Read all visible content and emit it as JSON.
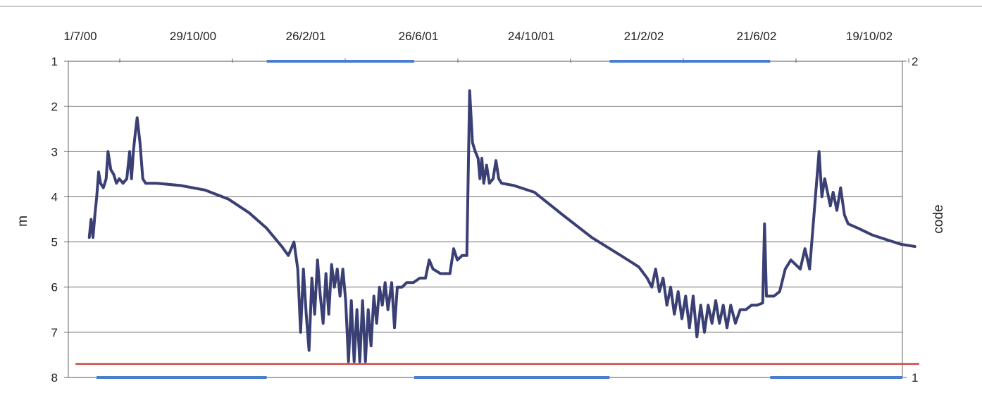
{
  "chart_data": {
    "type": "line",
    "title": "",
    "xlabel": "",
    "ylabel": "m",
    "y2label": "code",
    "y_inverted": true,
    "ylim": [
      1,
      8
    ],
    "y2lim": [
      1,
      2
    ],
    "xlim": [
      "2000-07-01",
      "2002-12-15"
    ],
    "x_tick_labels": [
      "1/7/00",
      "29/10/00",
      "26/2/01",
      "26/6/01",
      "24/10/01",
      "21/2/02",
      "21/6/02",
      "19/10/02"
    ],
    "x_tick_dates": [
      "2000-07-01",
      "2000-10-29",
      "2001-02-26",
      "2001-06-26",
      "2001-10-24",
      "2002-02-21",
      "2002-06-21",
      "2002-10-19"
    ],
    "y_ticks": [
      1,
      2,
      3,
      4,
      5,
      6,
      7,
      8
    ],
    "y2_ticks": [
      1,
      2
    ],
    "grid": "horizontal",
    "series": [
      {
        "color": "#3a3f74",
        "axis": "y",
        "points": [
          [
            "2000-07-15",
            4.9
          ],
          [
            "2000-07-17",
            4.5
          ],
          [
            "2000-07-19",
            4.9
          ],
          [
            "2000-07-21",
            4.4
          ],
          [
            "2000-07-23",
            4.0
          ],
          [
            "2000-07-25",
            3.45
          ],
          [
            "2000-07-27",
            3.7
          ],
          [
            "2000-07-30",
            3.8
          ],
          [
            "2000-08-02",
            3.6
          ],
          [
            "2000-08-04",
            3.0
          ],
          [
            "2000-08-07",
            3.4
          ],
          [
            "2000-08-10",
            3.5
          ],
          [
            "2000-08-13",
            3.7
          ],
          [
            "2000-08-16",
            3.6
          ],
          [
            "2000-08-20",
            3.7
          ],
          [
            "2000-08-24",
            3.6
          ],
          [
            "2000-08-27",
            3.0
          ],
          [
            "2000-08-29",
            3.6
          ],
          [
            "2000-08-31",
            3.0
          ],
          [
            "2000-09-02",
            2.6
          ],
          [
            "2000-09-04",
            2.25
          ],
          [
            "2000-09-07",
            2.8
          ],
          [
            "2000-09-10",
            3.6
          ],
          [
            "2000-09-13",
            3.7
          ],
          [
            "2000-09-25",
            3.7
          ],
          [
            "2000-10-20",
            3.75
          ],
          [
            "2000-11-15",
            3.85
          ],
          [
            "2000-12-10",
            4.05
          ],
          [
            "2001-01-01",
            4.35
          ],
          [
            "2001-01-20",
            4.7
          ],
          [
            "2001-02-05",
            5.1
          ],
          [
            "2001-02-12",
            5.3
          ],
          [
            "2001-02-18",
            5.0
          ],
          [
            "2001-02-22",
            5.6
          ],
          [
            "2001-02-25",
            7.0
          ],
          [
            "2001-02-28",
            5.6
          ],
          [
            "2001-03-03",
            6.6
          ],
          [
            "2001-03-06",
            7.4
          ],
          [
            "2001-03-09",
            5.8
          ],
          [
            "2001-03-12",
            6.6
          ],
          [
            "2001-03-15",
            5.4
          ],
          [
            "2001-03-18",
            6.2
          ],
          [
            "2001-03-21",
            6.8
          ],
          [
            "2001-03-24",
            5.7
          ],
          [
            "2001-03-27",
            6.6
          ],
          [
            "2001-03-30",
            5.5
          ],
          [
            "2001-04-02",
            6.0
          ],
          [
            "2001-04-05",
            5.6
          ],
          [
            "2001-04-08",
            6.2
          ],
          [
            "2001-04-11",
            5.6
          ],
          [
            "2001-04-14",
            6.3
          ],
          [
            "2001-04-17",
            7.65
          ],
          [
            "2001-04-20",
            6.3
          ],
          [
            "2001-04-23",
            7.65
          ],
          [
            "2001-04-26",
            6.5
          ],
          [
            "2001-04-29",
            7.65
          ],
          [
            "2001-05-02",
            6.3
          ],
          [
            "2001-05-05",
            7.65
          ],
          [
            "2001-05-08",
            6.5
          ],
          [
            "2001-05-11",
            7.3
          ],
          [
            "2001-05-14",
            6.2
          ],
          [
            "2001-05-17",
            6.8
          ],
          [
            "2001-05-20",
            6.0
          ],
          [
            "2001-05-23",
            6.4
          ],
          [
            "2001-05-26",
            5.9
          ],
          [
            "2001-05-29",
            6.5
          ],
          [
            "2001-06-02",
            5.9
          ],
          [
            "2001-06-05",
            6.9
          ],
          [
            "2001-06-08",
            6.0
          ],
          [
            "2001-06-13",
            6.0
          ],
          [
            "2001-06-18",
            5.9
          ],
          [
            "2001-06-25",
            5.9
          ],
          [
            "2001-07-02",
            5.8
          ],
          [
            "2001-07-08",
            5.8
          ],
          [
            "2001-07-12",
            5.4
          ],
          [
            "2001-07-16",
            5.6
          ],
          [
            "2001-07-24",
            5.7
          ],
          [
            "2001-08-03",
            5.7
          ],
          [
            "2001-08-07",
            5.15
          ],
          [
            "2001-08-11",
            5.4
          ],
          [
            "2001-08-16",
            5.3
          ],
          [
            "2001-08-21",
            5.3
          ],
          [
            "2001-08-24",
            1.65
          ],
          [
            "2001-08-27",
            2.8
          ],
          [
            "2001-08-30",
            3.0
          ],
          [
            "2001-09-02",
            3.15
          ],
          [
            "2001-09-04",
            3.6
          ],
          [
            "2001-09-06",
            3.15
          ],
          [
            "2001-09-08",
            3.7
          ],
          [
            "2001-09-11",
            3.3
          ],
          [
            "2001-09-14",
            3.7
          ],
          [
            "2001-09-18",
            3.6
          ],
          [
            "2001-09-21",
            3.2
          ],
          [
            "2001-09-24",
            3.6
          ],
          [
            "2001-09-27",
            3.7
          ],
          [
            "2001-10-10",
            3.75
          ],
          [
            "2001-11-01",
            3.9
          ],
          [
            "2001-12-01",
            4.4
          ],
          [
            "2002-01-01",
            4.9
          ],
          [
            "2002-02-01",
            5.3
          ],
          [
            "2002-02-20",
            5.55
          ],
          [
            "2002-03-01",
            5.8
          ],
          [
            "2002-03-06",
            6.0
          ],
          [
            "2002-03-10",
            5.6
          ],
          [
            "2002-03-14",
            6.1
          ],
          [
            "2002-03-18",
            5.8
          ],
          [
            "2002-03-22",
            6.4
          ],
          [
            "2002-03-26",
            6.0
          ],
          [
            "2002-03-30",
            6.6
          ],
          [
            "2002-04-03",
            6.1
          ],
          [
            "2002-04-07",
            6.7
          ],
          [
            "2002-04-11",
            6.2
          ],
          [
            "2002-04-15",
            6.9
          ],
          [
            "2002-04-19",
            6.2
          ],
          [
            "2002-04-23",
            7.1
          ],
          [
            "2002-04-27",
            6.4
          ],
          [
            "2002-05-01",
            7.0
          ],
          [
            "2002-05-05",
            6.4
          ],
          [
            "2002-05-09",
            6.8
          ],
          [
            "2002-05-13",
            6.3
          ],
          [
            "2002-05-17",
            6.8
          ],
          [
            "2002-05-21",
            6.4
          ],
          [
            "2002-05-25",
            6.9
          ],
          [
            "2002-05-29",
            6.4
          ],
          [
            "2002-06-03",
            6.8
          ],
          [
            "2002-06-08",
            6.5
          ],
          [
            "2002-06-14",
            6.5
          ],
          [
            "2002-06-20",
            6.4
          ],
          [
            "2002-06-26",
            6.4
          ],
          [
            "2002-07-02",
            6.35
          ],
          [
            "2002-07-04",
            4.6
          ],
          [
            "2002-07-06",
            6.2
          ],
          [
            "2002-07-14",
            6.2
          ],
          [
            "2002-07-20",
            6.1
          ],
          [
            "2002-07-26",
            5.6
          ],
          [
            "2002-08-01",
            5.4
          ],
          [
            "2002-08-06",
            5.5
          ],
          [
            "2002-08-11",
            5.6
          ],
          [
            "2002-08-16",
            5.15
          ],
          [
            "2002-08-21",
            5.6
          ],
          [
            "2002-08-31",
            3.0
          ],
          [
            "2002-09-03",
            4.0
          ],
          [
            "2002-09-06",
            3.6
          ],
          [
            "2002-09-09",
            3.9
          ],
          [
            "2002-09-12",
            4.2
          ],
          [
            "2002-09-15",
            3.9
          ],
          [
            "2002-09-19",
            4.3
          ],
          [
            "2002-09-23",
            3.8
          ],
          [
            "2002-09-27",
            4.4
          ],
          [
            "2002-10-01",
            4.6
          ],
          [
            "2002-10-12",
            4.7
          ],
          [
            "2002-10-27",
            4.85
          ],
          [
            "2002-11-11",
            4.95
          ],
          [
            "2002-11-26",
            5.05
          ],
          [
            "2002-12-11",
            5.1
          ]
        ]
      },
      {
        "color": "#cc3333",
        "axis": "y",
        "points": [
          [
            "2000-07-01",
            7.7
          ],
          [
            "2002-12-15",
            7.7
          ]
        ]
      },
      {
        "color": "#4a7fd0",
        "axis": "y2",
        "segments": [
          {
            "from": "2000-07-15",
            "to": "2001-01-20",
            "code": 1
          },
          {
            "from": "2001-01-20",
            "to": "2001-06-26",
            "code": 2
          },
          {
            "from": "2001-06-26",
            "to": "2002-01-20",
            "code": 1
          },
          {
            "from": "2002-01-20",
            "to": "2002-07-10",
            "code": 2
          },
          {
            "from": "2002-07-10",
            "to": "2002-12-15",
            "code": 1
          }
        ]
      }
    ]
  }
}
